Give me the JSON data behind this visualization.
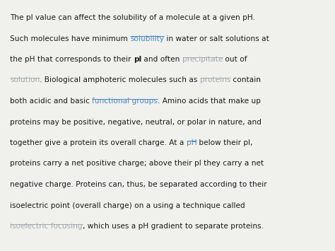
{
  "background_color": "#f0f0ec",
  "text_color": "#1a1a1a",
  "link_color": "#4a86c8",
  "link_color_faded": "#a0a8b0",
  "font_size": 7.6,
  "paragraphs": [
    {
      "segments": [
        {
          "text": "The pI value can affect the solubility of a molecule at a given pH.",
          "style": "normal"
        }
      ]
    },
    {
      "segments": [
        {
          "text": "Such molecules have minimum ",
          "style": "normal"
        },
        {
          "text": "solubility",
          "style": "link"
        },
        {
          "text": " in water or salt solutions at",
          "style": "normal"
        }
      ]
    },
    {
      "segments": [
        {
          "text": "the pH that corresponds to their ",
          "style": "normal"
        },
        {
          "text": "pI",
          "style": "bold"
        },
        {
          "text": " and often ",
          "style": "normal"
        },
        {
          "text": "precipitate",
          "style": "link_faded"
        },
        {
          "text": " out of",
          "style": "normal"
        }
      ]
    },
    {
      "segments": [
        {
          "text": "solution",
          "style": "link_faded"
        },
        {
          "text": ". Biological amphoteric molecules such as ",
          "style": "normal"
        },
        {
          "text": "proteins",
          "style": "link_faded"
        },
        {
          "text": " contain",
          "style": "normal"
        }
      ]
    },
    {
      "segments": [
        {
          "text": "both acidic and basic ",
          "style": "normal"
        },
        {
          "text": "functional groups",
          "style": "link"
        },
        {
          "text": ". Amino acids that make up",
          "style": "normal"
        }
      ]
    },
    {
      "segments": [
        {
          "text": "proteins may be positive, negative, neutral, or polar in nature, and",
          "style": "normal"
        }
      ]
    },
    {
      "segments": [
        {
          "text": "together give a protein its overall charge. At a ",
          "style": "normal"
        },
        {
          "text": "pH",
          "style": "link"
        },
        {
          "text": " below their pI,",
          "style": "normal"
        }
      ]
    },
    {
      "segments": [
        {
          "text": "proteins carry a net positive charge; above their pI they carry a net",
          "style": "normal"
        }
      ]
    },
    {
      "segments": [
        {
          "text": "negative charge. Proteins can, thus, be separated according to their",
          "style": "normal"
        }
      ]
    },
    {
      "segments": [
        {
          "text": "isoelectric point (overall charge) on a using a technique called",
          "style": "normal"
        }
      ]
    },
    {
      "segments": [
        {
          "text": "isoelectric focusing",
          "style": "link_faded"
        },
        {
          "text": ", which uses a pH gradient to separate proteins.",
          "style": "normal"
        }
      ]
    }
  ]
}
